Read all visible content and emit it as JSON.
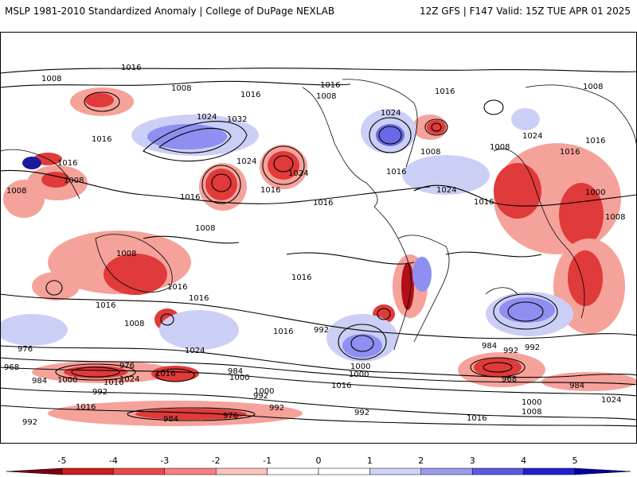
{
  "header": {
    "title_left": "MSLP 1981-2010 Standardized Anomaly | College of DuPage NEXLAB",
    "title_right": "12Z GFS | F147 Valid: 15Z TUE APR 01 2025"
  },
  "map": {
    "projection": "equirectangular",
    "central_longitude": -110,
    "field": "MSLP standardized anomaly",
    "contour_labels": [
      "1016",
      "1008",
      "1008",
      "1016",
      "1016",
      "1024",
      "1032",
      "1016",
      "1008",
      "1024",
      "1016",
      "1008",
      "1016",
      "1024",
      "1008",
      "1016",
      "1016",
      "1024",
      "1016",
      "1016",
      "1008",
      "1024",
      "1008",
      "1008",
      "1016",
      "1024",
      "1016",
      "1000",
      "1008",
      "1016",
      "1008",
      "1008",
      "1016",
      "1016",
      "1016",
      "1016",
      "1008",
      "1016",
      "1024",
      "992",
      "976",
      "968",
      "984",
      "976",
      "1016",
      "1000",
      "992",
      "1016",
      "1024",
      "1016",
      "992",
      "984",
      "976",
      "992",
      "992",
      "984",
      "1000",
      "992",
      "1000",
      "1016",
      "1000",
      "1000",
      "984",
      "992",
      "968",
      "992",
      "984",
      "1016",
      "1024",
      "1008",
      "1000"
    ],
    "colors": {
      "neg_strong": "#b0101a",
      "neg_mid": "#e03a3a",
      "neg_light": "#f5a29a",
      "pos_light": "#cccff5",
      "pos_mid": "#5a5ae0",
      "pos_strong": "#1a1a9a",
      "isobar": "#000000",
      "coastline": "#000000"
    }
  },
  "colorbar": {
    "ticks": [
      "-5",
      "-4",
      "-3",
      "-2",
      "-1",
      "0",
      "1",
      "2",
      "3",
      "4",
      "5"
    ],
    "min": -5,
    "max": 5,
    "colors": [
      "#7a0010",
      "#c81e1e",
      "#e84a4a",
      "#f88080",
      "#fcc2bc",
      "#ffffff",
      "#ffffff",
      "#d0d2f8",
      "#9a9cf0",
      "#5a5ae6",
      "#2020d0",
      "#0000a0"
    ]
  }
}
